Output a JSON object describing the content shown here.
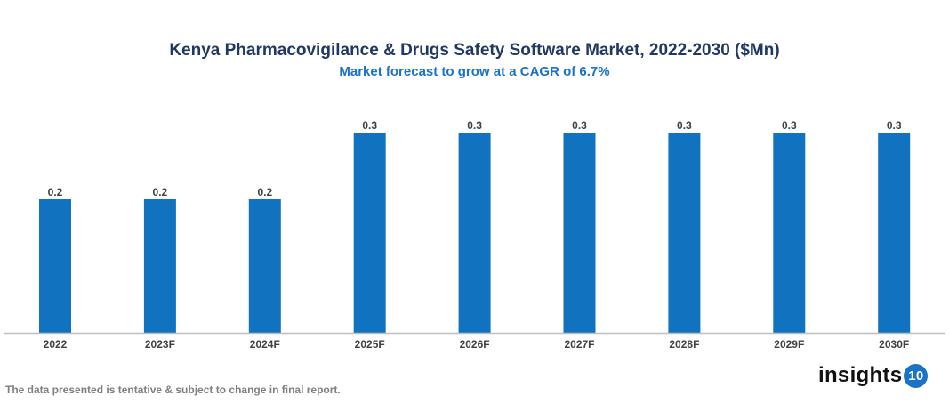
{
  "chart_data": {
    "type": "bar",
    "title": "Kenya Pharmacovigilance & Drugs Safety Software Market, 2022-2030 ($Mn)",
    "subtitle": "Market forecast to grow at a CAGR of 6.7%",
    "categories": [
      "2022",
      "2023F",
      "2024F",
      "2025F",
      "2026F",
      "2027F",
      "2028F",
      "2029F",
      "2030F"
    ],
    "values": [
      0.2,
      0.2,
      0.2,
      0.3,
      0.3,
      0.3,
      0.3,
      0.3,
      0.3
    ],
    "data_labels": [
      "0.2",
      "0.2",
      "0.2",
      "0.3",
      "0.3",
      "0.3",
      "0.3",
      "0.3",
      "0.3"
    ],
    "xlabel": "",
    "ylabel": "",
    "ylim": [
      0,
      0.3
    ],
    "grid": false,
    "bar_color": "#1172bf"
  },
  "footer": {
    "note": "The data presented is tentative & subject to change in final report."
  },
  "logo": {
    "text": "insights",
    "number": "10",
    "color": "#1a73c7"
  }
}
